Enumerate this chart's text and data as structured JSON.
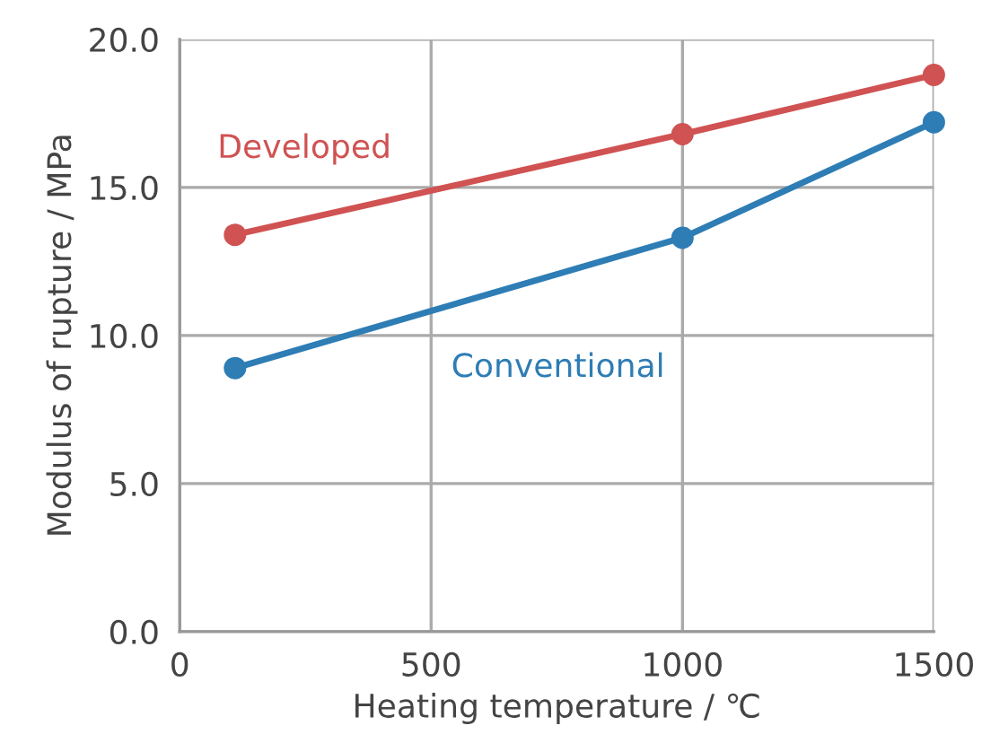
{
  "chart_data": {
    "type": "line",
    "xlabel": "Heating temperature / ℃",
    "ylabel": "Modulus of rupture / MPa",
    "x": [
      110,
      1000,
      1500
    ],
    "series": [
      {
        "name": "Developed",
        "color": "#d05252",
        "values": [
          13.4,
          16.8,
          18.8
        ]
      },
      {
        "name": "Conventional",
        "color": "#2e7db5",
        "values": [
          8.9,
          13.3,
          17.2
        ]
      }
    ],
    "xlim": [
      0,
      1500
    ],
    "xticks": [
      0,
      500,
      1000,
      1500
    ],
    "ylim": [
      0,
      20
    ],
    "yticks": [
      {
        "value": 0,
        "label": "0.0"
      },
      {
        "value": 5,
        "label": "5.0"
      },
      {
        "value": 10,
        "label": "10.0"
      },
      {
        "value": 15,
        "label": "15.0"
      },
      {
        "value": 20,
        "label": "20.0"
      }
    ],
    "grid": true,
    "marker": "circle",
    "line_style": "solid",
    "legend": false
  }
}
